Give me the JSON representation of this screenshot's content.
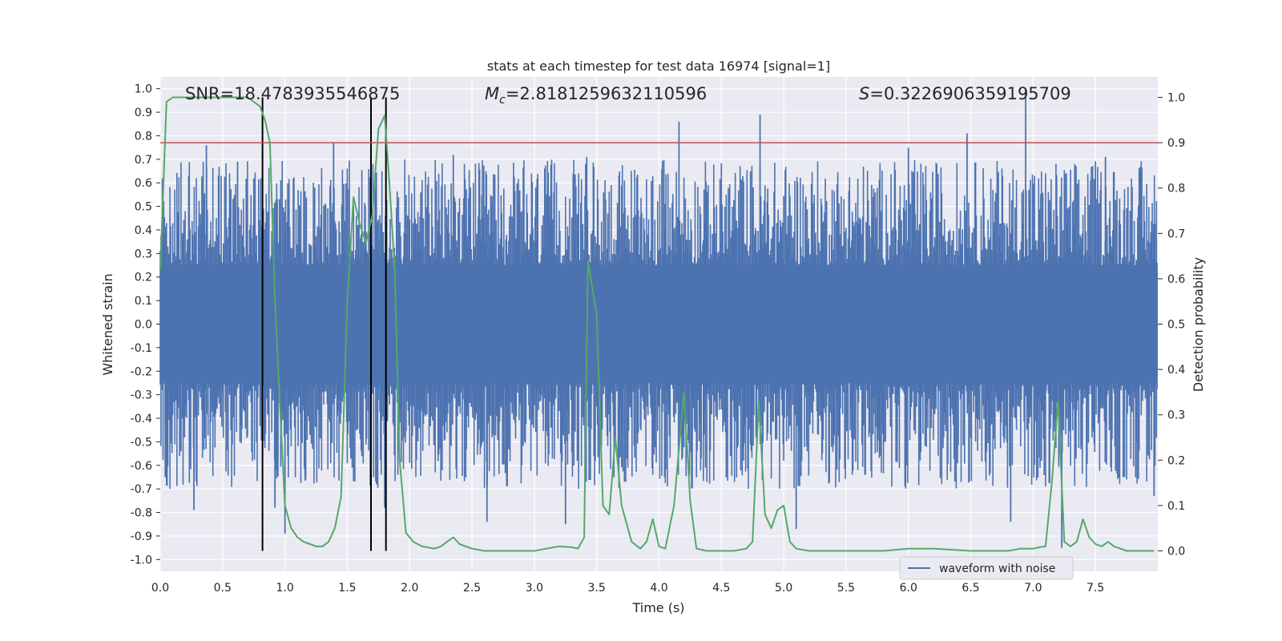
{
  "chart_data": {
    "type": "line",
    "title": "stats at each timestep for test data 16974 [signal=1]",
    "annotations": {
      "snr": "SNR=18.4783935546875",
      "mc_symbol": "M",
      "mc_sub": "c",
      "mc_value": "=2.8181259632110596",
      "s_symbol": "S",
      "s_value": "=0.3226906359195709"
    },
    "xlabel": "Time (s)",
    "ylabel_left": "Whitened strain",
    "ylabel_right": "Detection probability",
    "xlim": [
      0,
      8
    ],
    "ylim_left": [
      -1.05,
      1.05
    ],
    "ylim_right": [
      -0.045,
      1.045
    ],
    "x_ticks": [
      "0.0",
      "0.5",
      "1.0",
      "1.5",
      "2.0",
      "2.5",
      "3.0",
      "3.5",
      "4.0",
      "4.5",
      "5.0",
      "5.5",
      "6.0",
      "6.5",
      "7.0",
      "7.5"
    ],
    "y_left_ticks": [
      "1.0",
      "0.9",
      "0.8",
      "0.7",
      "0.6",
      "0.5",
      "0.4",
      "0.3",
      "0.2",
      "0.1",
      "0.0",
      "-0.1",
      "-0.2",
      "-0.3",
      "-0.4",
      "-0.5",
      "-0.6",
      "-0.7",
      "-0.8",
      "-0.9",
      "-1.0"
    ],
    "y_right_ticks": [
      "1.0",
      "0.9",
      "0.8",
      "0.7",
      "0.6",
      "0.5",
      "0.4",
      "0.3",
      "0.2",
      "0.1",
      "0.0"
    ],
    "grid": true,
    "legend": {
      "position": "lower-right",
      "entries": [
        "waveform with noise"
      ]
    },
    "threshold": {
      "axis": "right",
      "value": 0.9,
      "color": "#c44e52"
    },
    "markers": {
      "x": [
        0.82,
        1.69,
        1.81
      ],
      "ymin": 0.0,
      "ymax": 1.0,
      "axis": "right",
      "color": "#000000"
    },
    "colors": {
      "waveform": "#4c72b0",
      "probability": "#55a868",
      "background": "#eaeaf2",
      "grid": "#ffffff"
    },
    "waveform_envelope": {
      "description_only": false,
      "noise_seed": 16974,
      "samples_per_second": 180,
      "core_amplitude": 0.22,
      "typical_peak": 0.5,
      "max_peak": 1.0
    },
    "waveform_spikes": [
      {
        "x": 0.04,
        "y": -0.65
      },
      {
        "x": 0.27,
        "y": -0.79
      },
      {
        "x": 0.37,
        "y": 0.76
      },
      {
        "x": 0.62,
        "y": 0.69
      },
      {
        "x": 0.92,
        "y": -0.78
      },
      {
        "x": 1.0,
        "y": -0.89
      },
      {
        "x": 1.39,
        "y": 0.77
      },
      {
        "x": 1.8,
        "y": -0.78
      },
      {
        "x": 2.35,
        "y": 0.72
      },
      {
        "x": 2.62,
        "y": -0.84
      },
      {
        "x": 3.25,
        "y": -0.85
      },
      {
        "x": 3.42,
        "y": 0.71
      },
      {
        "x": 4.16,
        "y": 0.86
      },
      {
        "x": 4.81,
        "y": 0.89
      },
      {
        "x": 5.1,
        "y": -0.87
      },
      {
        "x": 6.0,
        "y": 0.75
      },
      {
        "x": 6.47,
        "y": 0.81
      },
      {
        "x": 6.82,
        "y": -0.84
      },
      {
        "x": 6.94,
        "y": 1.0
      },
      {
        "x": 7.23,
        "y": -0.95
      },
      {
        "x": 7.58,
        "y": 0.71
      },
      {
        "x": 7.97,
        "y": -0.73
      }
    ],
    "detection_probability": {
      "x": [
        0.0,
        0.05,
        0.1,
        0.2,
        0.3,
        0.4,
        0.5,
        0.6,
        0.7,
        0.75,
        0.8,
        0.84,
        0.88,
        0.92,
        0.96,
        1.0,
        1.05,
        1.1,
        1.15,
        1.2,
        1.25,
        1.3,
        1.35,
        1.4,
        1.45,
        1.5,
        1.55,
        1.6,
        1.65,
        1.7,
        1.75,
        1.8,
        1.84,
        1.88,
        1.92,
        1.97,
        2.03,
        2.1,
        2.2,
        2.25,
        2.3,
        2.35,
        2.4,
        2.5,
        2.6,
        2.8,
        3.0,
        3.1,
        3.2,
        3.3,
        3.35,
        3.4,
        3.43,
        3.5,
        3.55,
        3.6,
        3.65,
        3.7,
        3.78,
        3.85,
        3.9,
        3.95,
        4.0,
        4.05,
        4.12,
        4.2,
        4.25,
        4.3,
        4.38,
        4.5,
        4.6,
        4.7,
        4.75,
        4.8,
        4.85,
        4.9,
        4.95,
        5.0,
        5.05,
        5.1,
        5.2,
        5.3,
        5.5,
        5.8,
        6.0,
        6.2,
        6.5,
        6.8,
        6.9,
        7.0,
        7.05,
        7.1,
        7.15,
        7.2,
        7.25,
        7.3,
        7.35,
        7.4,
        7.45,
        7.5,
        7.55,
        7.6,
        7.65,
        7.7,
        7.75,
        7.8,
        7.9,
        7.97
      ],
      "y": [
        0.62,
        0.99,
        1.0,
        1.0,
        1.0,
        1.0,
        1.0,
        1.0,
        1.0,
        0.99,
        0.98,
        0.95,
        0.9,
        0.55,
        0.32,
        0.1,
        0.05,
        0.03,
        0.02,
        0.015,
        0.01,
        0.01,
        0.02,
        0.05,
        0.12,
        0.55,
        0.78,
        0.72,
        0.68,
        0.74,
        0.93,
        0.96,
        0.8,
        0.62,
        0.2,
        0.04,
        0.02,
        0.01,
        0.005,
        0.01,
        0.02,
        0.03,
        0.015,
        0.005,
        0.0,
        0.0,
        0.0,
        0.005,
        0.01,
        0.008,
        0.005,
        0.03,
        0.64,
        0.52,
        0.1,
        0.08,
        0.25,
        0.1,
        0.02,
        0.005,
        0.02,
        0.07,
        0.01,
        0.005,
        0.1,
        0.35,
        0.11,
        0.005,
        0.0,
        0.0,
        0.0,
        0.005,
        0.02,
        0.33,
        0.08,
        0.05,
        0.09,
        0.1,
        0.02,
        0.005,
        0.0,
        0.0,
        0.0,
        0.0,
        0.005,
        0.005,
        0.0,
        0.0,
        0.005,
        0.005,
        0.008,
        0.01,
        0.15,
        0.33,
        0.02,
        0.01,
        0.02,
        0.07,
        0.03,
        0.015,
        0.01,
        0.02,
        0.01,
        0.005,
        0.0,
        0.0,
        0.0,
        0.0
      ]
    }
  }
}
